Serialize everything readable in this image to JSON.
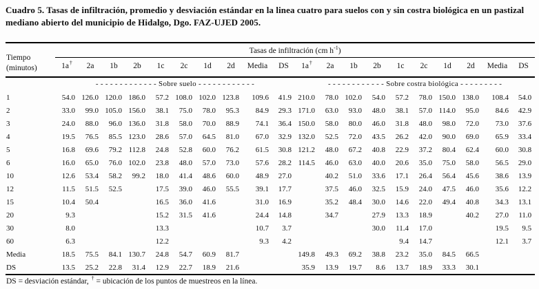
{
  "title": "Cuadro 5. Tasas de infiltración, promedio y desviación estándar en la linea cuatro para suelos con y sin costra biológica en un pastizal mediano abierto del municipio de Hidalgo, Dgo. FAZ-UJED 2005.",
  "table": {
    "time_header": {
      "line1": "Tiempo",
      "line2": "(minutos)"
    },
    "unit_header": {
      "prefix": "Tasas de infiltración (cm h",
      "sup": "-1",
      "suffix": ")"
    },
    "col_groups": [
      {
        "key": "suelo",
        "section_label": "- - - - - - - - - - - - -  Sobre suelo  - - - - - - - - - - - -",
        "columns": [
          {
            "label": "1a",
            "sup": "†"
          },
          {
            "label": "2a"
          },
          {
            "label": "1b"
          },
          {
            "label": "2b"
          },
          {
            "label": "1c"
          },
          {
            "label": "2c"
          },
          {
            "label": "1d"
          },
          {
            "label": "2d"
          },
          {
            "label": "Media"
          },
          {
            "label": "DS"
          }
        ]
      },
      {
        "key": "costra",
        "section_label": "- - - - - - - - - - - -  Sobre costra biológica  - - - - - - - - -",
        "columns": [
          {
            "label": "1a",
            "sup": "†"
          },
          {
            "label": "2a"
          },
          {
            "label": "1b"
          },
          {
            "label": "2b"
          },
          {
            "label": "1c"
          },
          {
            "label": "2c"
          },
          {
            "label": "1d"
          },
          {
            "label": "2d"
          },
          {
            "label": "Media"
          },
          {
            "label": "DS"
          }
        ]
      }
    ],
    "rows": [
      {
        "time": "1",
        "suelo": [
          "54.0",
          "126.0",
          "120.0",
          "186.0",
          "57.2",
          "108.0",
          "102.0",
          "123.8",
          "109.6",
          "41.9"
        ],
        "costra": [
          "210.0",
          "78.0",
          "102.0",
          "54.0",
          "57.2",
          "78.0",
          "150.0",
          "138.0",
          "108.4",
          "54.0"
        ]
      },
      {
        "time": "2",
        "suelo": [
          "33.0",
          "99.0",
          "105.0",
          "156.0",
          "38.1",
          "75.0",
          "78.0",
          "95.3",
          "84.9",
          "29.3"
        ],
        "costra": [
          "171.0",
          "63.0",
          "93.0",
          "48.0",
          "38.1",
          "57.0",
          "114.0",
          "95.0",
          "84.6",
          "42.9"
        ]
      },
      {
        "time": "3",
        "suelo": [
          "24.0",
          "88.0",
          "96.0",
          "136.0",
          "31.8",
          "58.0",
          "70.0",
          "88.9",
          "74.1",
          "36.4"
        ],
        "costra": [
          "150.0",
          "58.0",
          "80.0",
          "46.0",
          "31.8",
          "48.0",
          "98.0",
          "72.0",
          "73.0",
          "37.6"
        ]
      },
      {
        "time": "4",
        "suelo": [
          "19.5",
          "76.5",
          "85.5",
          "123.0",
          "28.6",
          "57.0",
          "64.5",
          "81.0",
          "67.0",
          "32.9"
        ],
        "costra": [
          "132.0",
          "52.5",
          "72.0",
          "43.5",
          "26.2",
          "42.0",
          "90.0",
          "69.0",
          "65.9",
          "33.4"
        ]
      },
      {
        "time": "5",
        "suelo": [
          "16.8",
          "69.6",
          "79.2",
          "112.8",
          "24.8",
          "52.8",
          "60.0",
          "76.2",
          "61.5",
          "30.8"
        ],
        "costra": [
          "121.2",
          "48.0",
          "67.2",
          "40.8",
          "22.9",
          "37.2",
          "80.4",
          "62.4",
          "60.0",
          "30.8"
        ]
      },
      {
        "time": "6",
        "suelo": [
          "16.0",
          "65.0",
          "76.0",
          "102.0",
          "23.8",
          "48.0",
          "57.0",
          "73.0",
          "57.6",
          "28.2"
        ],
        "costra": [
          "114.5",
          "46.0",
          "63.0",
          "40.0",
          "20.6",
          "35.0",
          "75.0",
          "58.0",
          "56.5",
          "29.0"
        ]
      },
      {
        "time": "10",
        "suelo": [
          "12.6",
          "53.4",
          "58.2",
          "99.2",
          "18.0",
          "41.4",
          "48.6",
          "60.0",
          "48.9",
          "27.0"
        ],
        "costra": [
          "",
          "40.2",
          "51.0",
          "33.6",
          "17.1",
          "26.4",
          "56.4",
          "45.6",
          "38.6",
          "13.9"
        ]
      },
      {
        "time": "12",
        "suelo": [
          "11.5",
          "51.5",
          "52.5",
          "",
          "17.5",
          "39.0",
          "46.0",
          "55.5",
          "39.1",
          "17.7"
        ],
        "costra": [
          "",
          "37.5",
          "46.0",
          "32.5",
          "15.9",
          "24.0",
          "47.5",
          "46.0",
          "35.6",
          "12.2"
        ]
      },
      {
        "time": "15",
        "suelo": [
          "10.4",
          "50.4",
          "",
          "",
          "16.5",
          "36.0",
          "41.6",
          "",
          "31.0",
          "16.9"
        ],
        "costra": [
          "",
          "35.2",
          "48.4",
          "30.0",
          "14.6",
          "22.0",
          "49.4",
          "40.8",
          "34.3",
          "13.1"
        ]
      },
      {
        "time": "20",
        "suelo": [
          "9.3",
          "",
          "",
          "",
          "15.2",
          "31.5",
          "41.6",
          "",
          "24.4",
          "14.8"
        ],
        "costra": [
          "",
          "34.7",
          "",
          "27.9",
          "13.3",
          "18.9",
          "",
          "40.2",
          "27.0",
          "11.0"
        ]
      },
      {
        "time": "30",
        "suelo": [
          "8.0",
          "",
          "",
          "",
          "13.3",
          "",
          "",
          "",
          "10.7",
          "3.7"
        ],
        "costra": [
          "",
          "",
          "",
          "30.0",
          "11.4",
          "17.0",
          "",
          "",
          "19.5",
          "9.5"
        ]
      },
      {
        "time": "60",
        "suelo": [
          "6.3",
          "",
          "",
          "",
          "12.2",
          "",
          "",
          "",
          "9.3",
          "4.2"
        ],
        "costra": [
          "",
          "",
          "",
          "",
          "9.4",
          "14.7",
          "",
          "",
          "12.1",
          "3.7"
        ]
      },
      {
        "time": "Media",
        "suelo": [
          "18.5",
          "75.5",
          "84.1",
          "130.7",
          "24.8",
          "54.7",
          "60.9",
          "81.7",
          "",
          ""
        ],
        "costra": [
          "149.8",
          "49.3",
          "69.2",
          "38.8",
          "23.2",
          "35.0",
          "84.5",
          "66.5",
          "",
          ""
        ]
      },
      {
        "time": "DS",
        "suelo": [
          "13.5",
          "25.2",
          "22.8",
          "31.4",
          "12.9",
          "22.7",
          "18.9",
          "21.6",
          "",
          ""
        ],
        "costra": [
          "35.9",
          "13.9",
          "19.7",
          "8.6",
          "13.7",
          "18.9",
          "33.3",
          "30.1",
          "",
          ""
        ]
      }
    ]
  },
  "footnote": {
    "prefix": "DS = desviación estándar, ",
    "sup": "†",
    "suffix": " = ubicación de los puntos de muestreos en la línea."
  }
}
